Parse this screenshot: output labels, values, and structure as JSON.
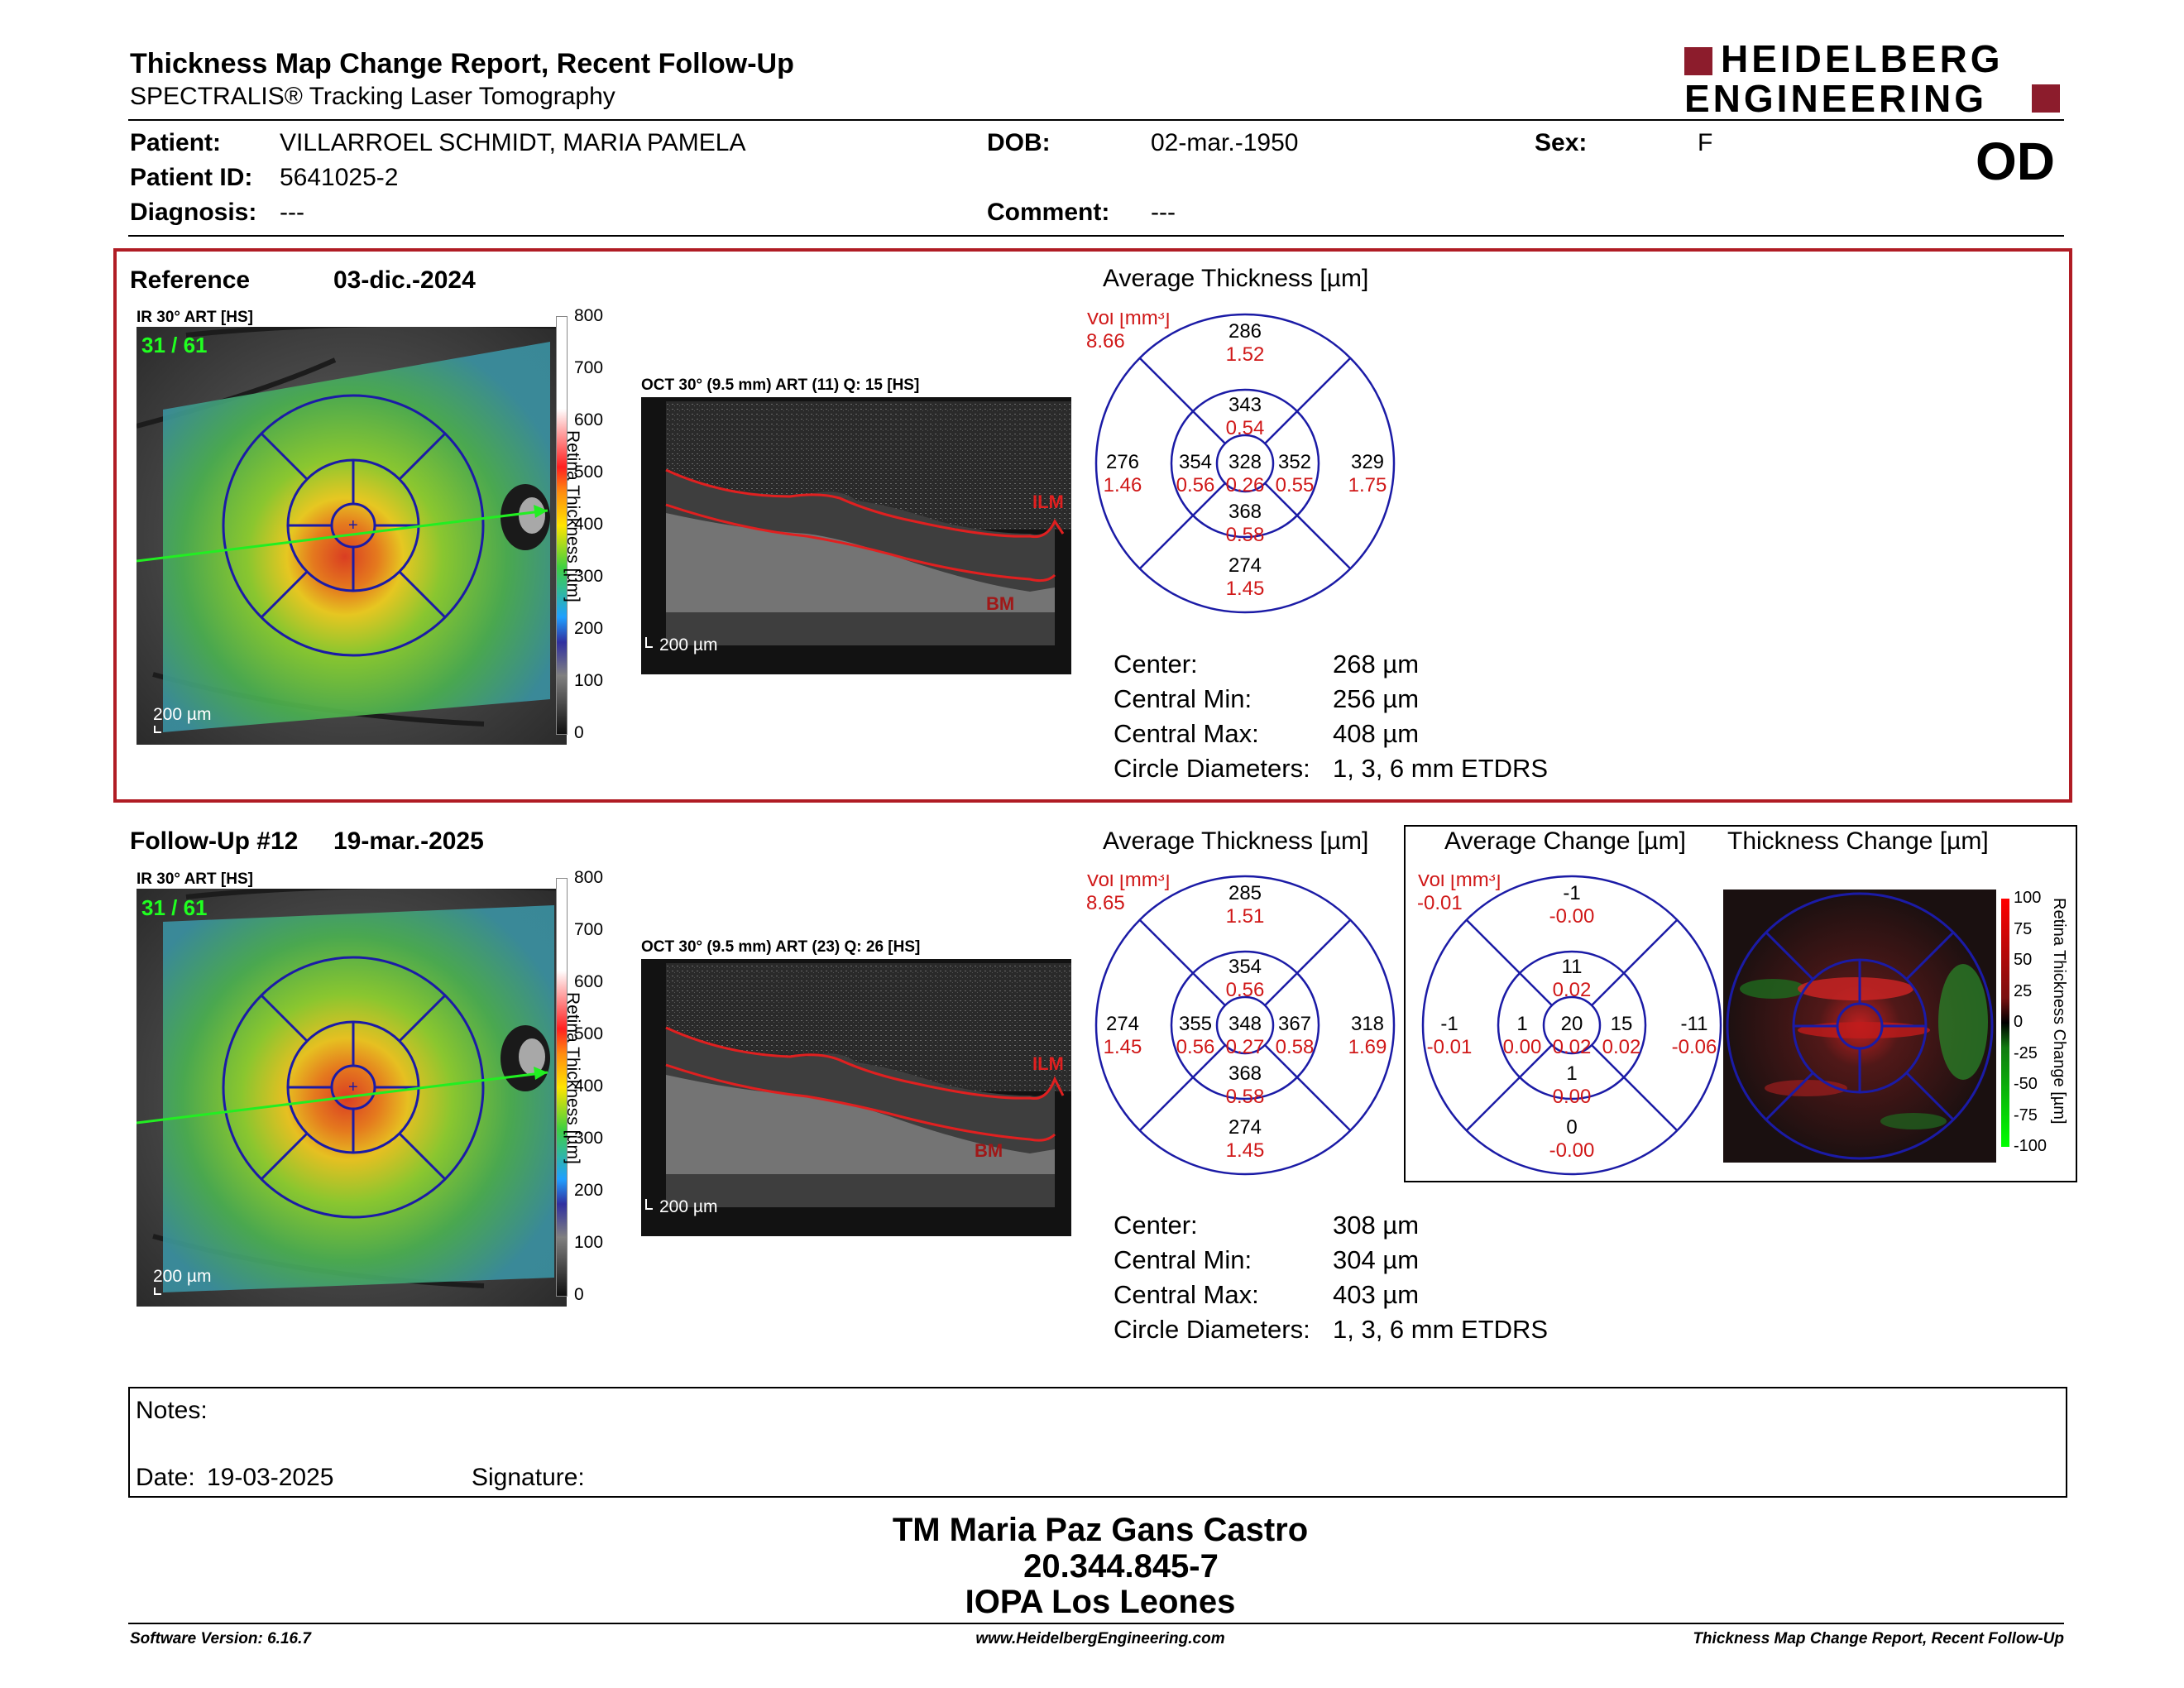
{
  "header": {
    "title": "Thickness Map Change Report, Recent Follow-Up",
    "subtitle": "SPECTRALIS® Tracking Laser Tomography",
    "logo_line1": "HEIDELBERG",
    "logo_line2": "ENGINEERING",
    "eye": "OD"
  },
  "patient": {
    "name_label": "Patient:",
    "name": "VILLARROEL SCHMIDT, MARIA PAMELA",
    "id_label": "Patient ID:",
    "id": "5641025-2",
    "diagnosis_label": "Diagnosis:",
    "diagnosis": "---",
    "dob_label": "DOB:",
    "dob": "02-mar.-1950",
    "comment_label": "Comment:",
    "comment": "---",
    "sex_label": "Sex:",
    "sex": "F"
  },
  "reference": {
    "label": "Reference",
    "date": "03-dic.-2024",
    "ir_label": "IR 30° ART [HS]",
    "frame": "31 / 61",
    "scale_ir": "200 µm",
    "oct_label": "OCT 30° (9.5 mm) ART (11) Q: 15 [HS]",
    "scale_oct": "200 µm",
    "ilm": "ILM",
    "bm": "BM",
    "colorbar_ticks": [
      "800",
      "700",
      "600",
      "500",
      "400",
      "300",
      "200",
      "100",
      "0"
    ],
    "colorbar_title": "Retina Thickness [µm]",
    "grid_title": "Average Thickness [µm]",
    "vol_label": "Vol [mm³]",
    "vol_total": "8.66",
    "sectors": {
      "outer_top": [
        "286",
        "1.52"
      ],
      "inner_top": [
        "343",
        "0.54"
      ],
      "outer_left": [
        "276",
        "1.46"
      ],
      "inner_left": [
        "354",
        "0.56"
      ],
      "center": [
        "328",
        "0.26"
      ],
      "inner_right": [
        "352",
        "0.55"
      ],
      "outer_right": [
        "329",
        "1.75"
      ],
      "inner_bottom": [
        "368",
        "0.58"
      ],
      "outer_bottom": [
        "274",
        "1.45"
      ]
    },
    "stats": [
      {
        "label": "Center:",
        "value": "268 µm"
      },
      {
        "label": "Central Min:",
        "value": "256 µm"
      },
      {
        "label": "Central Max:",
        "value": "408 µm"
      },
      {
        "label": "Circle Diameters:",
        "value": "1, 3, 6 mm ETDRS"
      }
    ]
  },
  "followup": {
    "label": "Follow-Up #12",
    "date": "19-mar.-2025",
    "ir_label": "IR 30° ART [HS]",
    "frame": "31 / 61",
    "scale_ir": "200 µm",
    "oct_label": "OCT 30° (9.5 mm) ART (23) Q: 26 [HS]",
    "scale_oct": "200 µm",
    "ilm": "ILM",
    "bm": "BM",
    "colorbar_ticks": [
      "800",
      "700",
      "600",
      "500",
      "400",
      "300",
      "200",
      "100",
      "0"
    ],
    "colorbar_title": "Retina Thickness [µm]",
    "grid_title": "Average Thickness [µm]",
    "vol_label": "Vol [mm³]",
    "vol_total": "8.65",
    "sectors": {
      "outer_top": [
        "285",
        "1.51"
      ],
      "inner_top": [
        "354",
        "0.56"
      ],
      "outer_left": [
        "274",
        "1.45"
      ],
      "inner_left": [
        "355",
        "0.56"
      ],
      "center": [
        "348",
        "0.27"
      ],
      "inner_right": [
        "367",
        "0.58"
      ],
      "outer_right": [
        "318",
        "1.69"
      ],
      "inner_bottom": [
        "368",
        "0.58"
      ],
      "outer_bottom": [
        "274",
        "1.45"
      ]
    },
    "stats": [
      {
        "label": "Center:",
        "value": "308 µm"
      },
      {
        "label": "Central Min:",
        "value": "304 µm"
      },
      {
        "label": "Central Max:",
        "value": "403 µm"
      },
      {
        "label": "Circle Diameters:",
        "value": "1, 3, 6 mm ETDRS"
      }
    ]
  },
  "change": {
    "grid_title": "Average Change [µm]",
    "map_title": "Thickness Change [µm]",
    "vol_label": "Vol [mm³]",
    "vol_total": "-0.01",
    "sectors": {
      "outer_top": [
        "-1",
        "-0.00"
      ],
      "inner_top": [
        "11",
        "0.02"
      ],
      "outer_left": [
        "-1",
        "-0.01"
      ],
      "inner_left": [
        "1",
        "0.00"
      ],
      "center": [
        "20",
        "0.02"
      ],
      "inner_right": [
        "15",
        "0.02"
      ],
      "outer_right": [
        "-11",
        "-0.06"
      ],
      "inner_bottom": [
        "1",
        "0.00"
      ],
      "outer_bottom": [
        "0",
        "-0.00"
      ]
    },
    "colorbar_ticks": [
      "100",
      "75",
      "50",
      "25",
      "0",
      "-25",
      "-50",
      "-75",
      "-100"
    ],
    "colorbar_title": "Retina Thickness Change [µm]"
  },
  "notes": {
    "notes_label": "Notes:",
    "date_label": "Date:",
    "date": "19-03-2025",
    "signature_label": "Signature:"
  },
  "signature": {
    "name": "TM Maria Paz Gans Castro",
    "rut": "20.344.845-7",
    "institution": "IOPA Los Leones"
  },
  "footer": {
    "version": "Software Version: 6.16.7",
    "website": "www.HeidelbergEngineering.com",
    "report": "Thickness Map Change Report, Recent Follow-Up"
  },
  "colors": {
    "accent_red": "#b01c24",
    "grid_blue": "#1b1ba6",
    "value_red": "#d01818"
  }
}
